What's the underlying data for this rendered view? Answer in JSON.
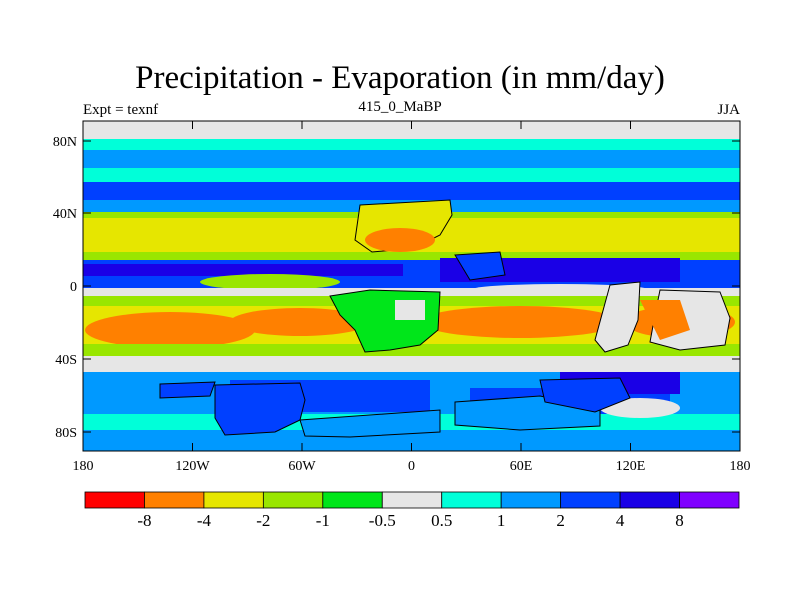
{
  "title": "Precipitation - Evaporation (in mm/day)",
  "subtitle": "415_0_MaBP",
  "left_label": "Expt = texnf",
  "right_label": "JJA",
  "y_ticks": [
    "80N",
    "40N",
    "0",
    "40S",
    "80S"
  ],
  "x_ticks": [
    "180",
    "120W",
    "60W",
    "0",
    "60E",
    "120E",
    "180"
  ],
  "colorbar": {
    "colors": [
      "#ff0000",
      "#ff8000",
      "#e6e600",
      "#99e600",
      "#00e61a",
      "#e6e6e6",
      "#00ffd9",
      "#0099ff",
      "#0040ff",
      "#1a00e6",
      "#8000ff"
    ],
    "labels": [
      "-8",
      "-4",
      "-2",
      "-1",
      "-0.5",
      "0.5",
      "1",
      "2",
      "4",
      "8"
    ]
  }
}
